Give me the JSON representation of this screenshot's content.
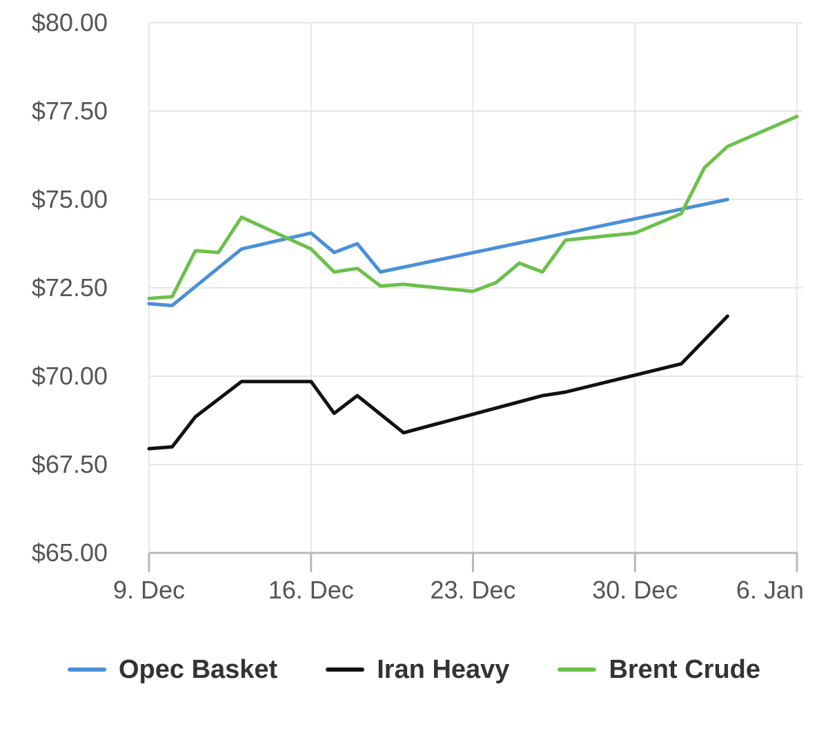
{
  "chart_data": {
    "type": "line",
    "x_type": "date",
    "ylim": [
      65,
      80
    ],
    "y_ticks": [
      80,
      77.5,
      75,
      72.5,
      70,
      67.5,
      65
    ],
    "y_tick_labels": [
      "$80.00",
      "$77.50",
      "$75.00",
      "$72.50",
      "$70.00",
      "$67.50",
      "$65.00"
    ],
    "x_ticks": [
      "2019-12-09",
      "2019-12-16",
      "2019-12-23",
      "2019-12-30",
      "2020-01-06"
    ],
    "x_tick_labels": [
      "9. Dec",
      "16. Dec",
      "23. Dec",
      "30. Dec",
      "6. Jan"
    ],
    "xlim": [
      "2019-12-09",
      "2020-01-06"
    ],
    "grid": true,
    "legend_position": "bottom",
    "series": [
      {
        "name": "Opec Basket",
        "color": "#4a90d9",
        "points": [
          [
            "2019-12-09",
            72.05
          ],
          [
            "2019-12-10",
            72.0
          ],
          [
            "2019-12-13",
            73.6
          ],
          [
            "2019-12-16",
            74.05
          ],
          [
            "2019-12-17",
            73.5
          ],
          [
            "2019-12-18",
            73.75
          ],
          [
            "2019-12-19",
            72.95
          ],
          [
            "2020-01-03",
            75.0
          ]
        ]
      },
      {
        "name": "Iran Heavy",
        "color": "#111111",
        "points": [
          [
            "2019-12-09",
            67.95
          ],
          [
            "2019-12-10",
            68.0
          ],
          [
            "2019-12-11",
            68.85
          ],
          [
            "2019-12-13",
            69.85
          ],
          [
            "2019-12-16",
            69.85
          ],
          [
            "2019-12-17",
            68.95
          ],
          [
            "2019-12-18",
            69.45
          ],
          [
            "2019-12-20",
            68.4
          ],
          [
            "2019-12-26",
            69.45
          ],
          [
            "2019-12-27",
            69.55
          ],
          [
            "2020-01-01",
            70.35
          ],
          [
            "2020-01-03",
            71.7
          ]
        ]
      },
      {
        "name": "Brent Crude",
        "color": "#6cc04a",
        "points": [
          [
            "2019-12-09",
            72.2
          ],
          [
            "2019-12-10",
            72.25
          ],
          [
            "2019-12-11",
            73.55
          ],
          [
            "2019-12-12",
            73.5
          ],
          [
            "2019-12-13",
            74.5
          ],
          [
            "2019-12-16",
            73.6
          ],
          [
            "2019-12-17",
            72.95
          ],
          [
            "2019-12-18",
            73.05
          ],
          [
            "2019-12-19",
            72.55
          ],
          [
            "2019-12-20",
            72.6
          ],
          [
            "2019-12-23",
            72.4
          ],
          [
            "2019-12-24",
            72.65
          ],
          [
            "2019-12-25",
            73.2
          ],
          [
            "2019-12-26",
            72.95
          ],
          [
            "2019-12-27",
            73.85
          ],
          [
            "2019-12-30",
            74.05
          ],
          [
            "2020-01-01",
            74.6
          ],
          [
            "2020-01-02",
            75.9
          ],
          [
            "2020-01-03",
            76.5
          ],
          [
            "2020-01-06",
            77.35
          ]
        ]
      }
    ]
  }
}
